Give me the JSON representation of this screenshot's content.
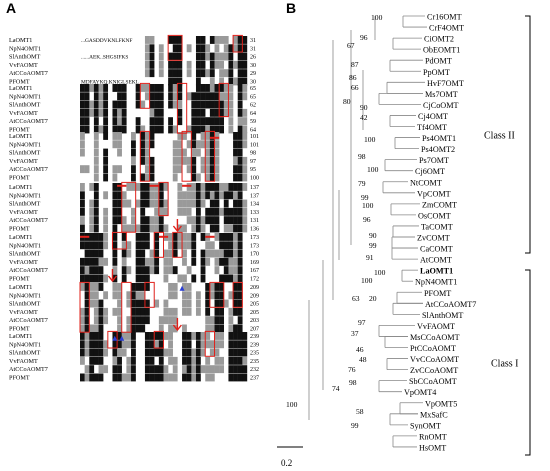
{
  "panel_a": {
    "label": "A",
    "species": [
      "LaOMT1",
      "NpN4OMT1",
      "SlAnthOMT",
      "VvFAOMT",
      "AtCCoAOMT7",
      "PFOMT"
    ],
    "blocks": [
      {
        "ends": [
          "31",
          "31",
          "26",
          "30",
          "29",
          "30"
        ]
      },
      {
        "ends": [
          "65",
          "65",
          "62",
          "64",
          "59",
          "64"
        ]
      },
      {
        "ends": [
          "101",
          "101",
          "98",
          "97",
          "95",
          "100"
        ]
      },
      {
        "ends": [
          "137",
          "137",
          "134",
          "133",
          "131",
          "136"
        ]
      },
      {
        "ends": [
          "173",
          "173",
          "170",
          "169",
          "167",
          "172"
        ]
      },
      {
        "ends": [
          "209",
          "209",
          "205",
          "205",
          "203",
          "207"
        ]
      },
      {
        "ends": [
          "239",
          "239",
          "235",
          "235",
          "232",
          "237"
        ]
      }
    ],
    "sequence_fragments": {
      "row0": "MDFAYKQ.KNIGLSEKL",
      "row1": "...GASDDVKNLFKNF",
      "row2": "......AEK..SHGSIFKS"
    }
  },
  "panel_b": {
    "label": "B",
    "taxa": [
      "Cr16OMT",
      "CrF4OMT",
      "CiOMT2",
      "ObEOMT1",
      "PdOMT",
      "PpOMT",
      "HvF7OMT",
      "Ms7OMT",
      "CjCoOMT",
      "Cj4OMT",
      "Tf4OMT",
      "Ps4OMT1",
      "Ps4OMT2",
      "Ps7OMT",
      "Cj6OMT",
      "NtCOMT",
      "VpCOMT",
      "ZmCOMT",
      "OsCOMT",
      "TaCOMT",
      "ZvCOMT",
      "CaCOMT",
      "AtCOMT",
      "LaOMT1",
      "NpN4OMT1",
      "PFOMT",
      "AtCCoAOMT7",
      "SlAnthOMT",
      "VvFAOMT",
      "MsCCoAOMT",
      "PtCCoAOMT",
      "VvCCoAOMT",
      "ZvCCoAOMT",
      "SbCCoAOMT",
      "VpOMT4",
      "VpOMT5",
      "MxSafC",
      "SynOMT",
      "RnOMT",
      "HsOMT"
    ],
    "highlight_taxon": "LaOMT1",
    "bootstrap": [
      "100",
      "96",
      "67",
      "87",
      "86",
      "66",
      "80",
      "90",
      "42",
      "100",
      "98",
      "100",
      "79",
      "99",
      "100",
      "96",
      "90",
      "99",
      "91",
      "100",
      "100",
      "20",
      "63",
      "97",
      "37",
      "46",
      "48",
      "76",
      "98",
      "74",
      "58",
      "99",
      "100"
    ],
    "classes": [
      "Class II",
      "Class I"
    ],
    "scale_label": "0.2"
  }
}
